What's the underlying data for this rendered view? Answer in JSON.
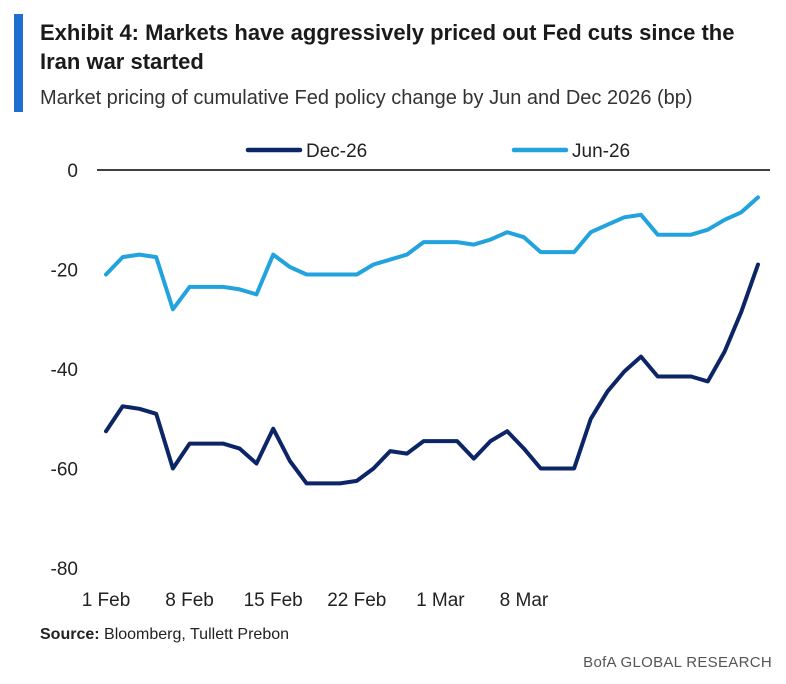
{
  "header": {
    "title": "Exhibit 4: Markets have aggressively priced out Fed cuts since the Iran war started",
    "subtitle": "Market pricing of cumulative Fed policy change by Jun and Dec 2026 (bp)"
  },
  "footer": {
    "source_label": "Source:",
    "source_text": " Bloomberg, Tullett Prebon",
    "brand": "BofA GLOBAL RESEARCH"
  },
  "colors": {
    "accent": "#1f6fd1",
    "dec26": "#0c2566",
    "jun26": "#22a3de"
  },
  "chart_data": {
    "type": "line",
    "ylim": [
      -80,
      0
    ],
    "y_ticks": [
      0,
      -20,
      -40,
      -60,
      -80
    ],
    "y_tick_labels": [
      "0",
      "-20",
      "-40",
      "-60",
      "-80"
    ],
    "x_ticks": [
      {
        "label": "1 Feb",
        "index": 0
      },
      {
        "label": "8 Feb",
        "index": 5
      },
      {
        "label": "15 Feb",
        "index": 10
      },
      {
        "label": "22 Feb",
        "index": 15
      },
      {
        "label": "1 Mar",
        "index": 20
      },
      {
        "label": "8 Mar",
        "index": 25
      }
    ],
    "legend_position": "top",
    "series": [
      {
        "name": "Dec-26",
        "color": "#0c2566",
        "values": [
          -52.5,
          -47.5,
          -48,
          -49,
          -60,
          -55,
          -55,
          -55,
          -56,
          -59,
          -52,
          -58.5,
          -63,
          -63,
          -63,
          -62.5,
          -60,
          -56.5,
          -57,
          -54.5,
          -54.5,
          -54.5,
          -58,
          -54.5,
          -52.5,
          -56,
          -60,
          -60,
          -60,
          -50,
          -44.5,
          -40.5,
          -37.5,
          -41.5,
          -41.5,
          -41.5,
          -42.5,
          -36.5,
          -28.5,
          -19
        ]
      },
      {
        "name": "Jun-26",
        "color": "#22a3de",
        "values": [
          -21,
          -17.5,
          -17,
          -17.5,
          -28,
          -23.5,
          -23.5,
          -23.5,
          -24,
          -25,
          -17,
          -19.5,
          -21,
          -21,
          -21,
          -21,
          -19,
          -18,
          -17,
          -14.5,
          -14.5,
          -14.5,
          -15,
          -14,
          -12.5,
          -13.5,
          -16.5,
          -16.5,
          -16.5,
          -12.5,
          -11,
          -9.5,
          -9,
          -13,
          -13,
          -13,
          -12,
          -10,
          -8.5,
          -5.5
        ]
      }
    ]
  }
}
